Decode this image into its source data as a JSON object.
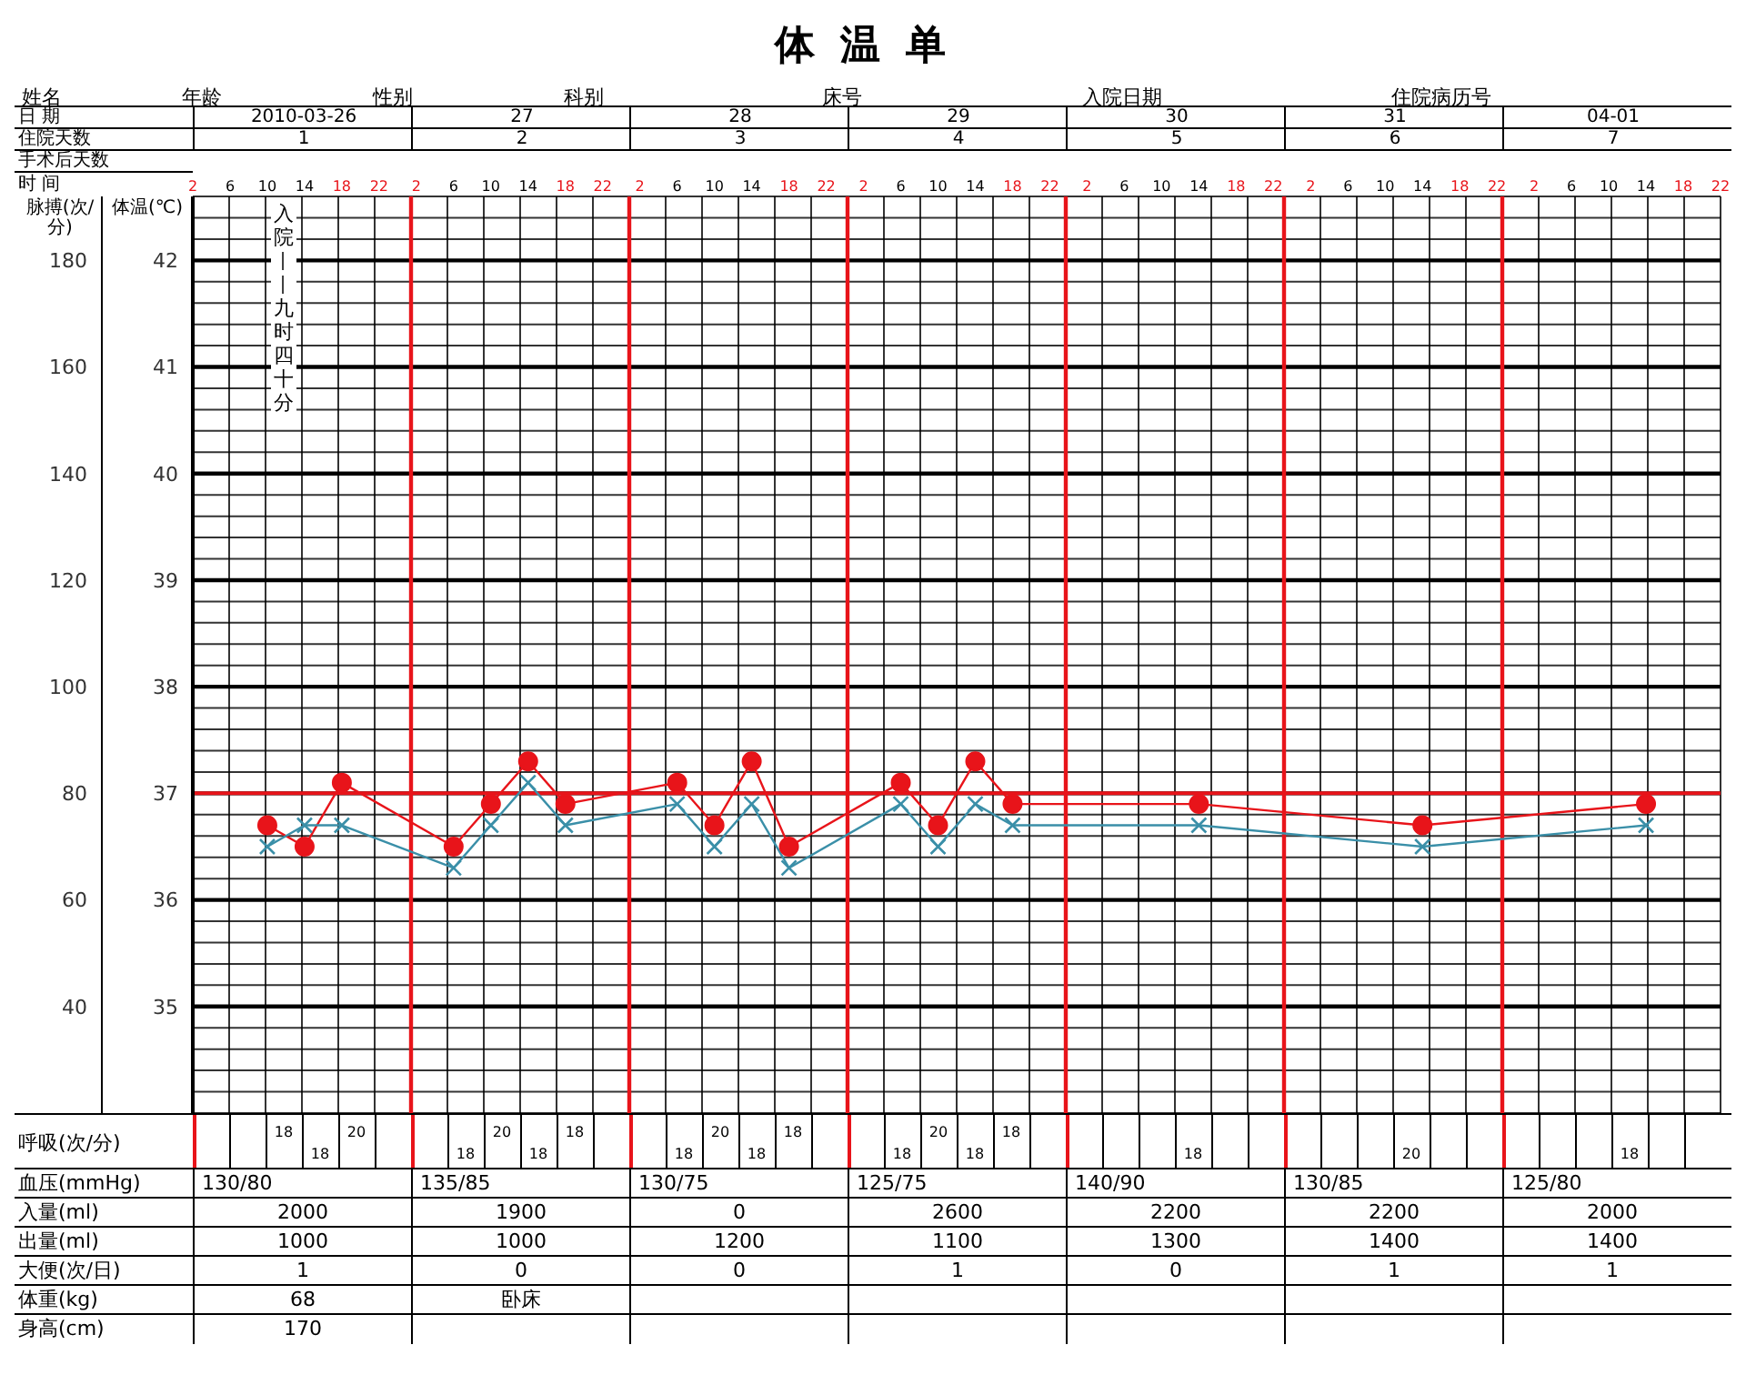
{
  "chart_data": [
    {
      "type": "line",
      "title": "体温单",
      "ylabel": "脉搏(次/分)",
      "y2label": "体温(℃)",
      "categories": [
        "2",
        "6",
        "10",
        "14",
        "18",
        "22",
        "2",
        "6",
        "10",
        "14",
        "18",
        "22",
        "2",
        "6",
        "10",
        "14",
        "18",
        "22",
        "2",
        "6",
        "10",
        "14",
        "18",
        "22",
        "2",
        "6",
        "10",
        "14",
        "18",
        "22",
        "2",
        "6",
        "10",
        "14",
        "18",
        "22",
        "2",
        "6",
        "10",
        "14",
        "18",
        "22"
      ],
      "ylim": [
        20,
        192
      ],
      "yticks": [
        40,
        60,
        80,
        100,
        120,
        140,
        160,
        180
      ],
      "y2lim": [
        34,
        42.6
      ],
      "y2ticks": [
        35,
        36,
        37,
        38,
        39,
        40,
        41,
        42
      ],
      "grid": true,
      "series": [
        {
          "color": "#e8141a",
          "marker": "circle",
          "values": [
            null,
            null,
            74,
            70,
            82,
            null,
            null,
            70,
            78,
            86,
            78,
            null,
            null,
            82,
            74,
            86,
            70,
            null,
            null,
            82,
            74,
            86,
            78,
            null,
            null,
            null,
            null,
            78,
            null,
            null,
            null,
            null,
            null,
            74,
            null,
            null,
            null,
            null,
            null,
            78,
            null,
            null
          ]
        },
        {
          "color": "#3a8fa8",
          "marker": "cross",
          "axis": "y2",
          "values": [
            null,
            null,
            36.5,
            36.7,
            36.7,
            null,
            null,
            36.3,
            36.7,
            37.1,
            36.7,
            null,
            null,
            36.9,
            36.5,
            36.9,
            36.3,
            null,
            null,
            36.9,
            36.5,
            36.9,
            36.7,
            null,
            null,
            null,
            null,
            36.7,
            null,
            null,
            null,
            null,
            null,
            36.5,
            null,
            null,
            null,
            null,
            null,
            36.7,
            null,
            null
          ]
        }
      ],
      "ref_lines": [
        {
          "axis": "y2",
          "value": 37,
          "color": "#e8141a"
        }
      ],
      "annotations": [
        "姓名",
        "年龄",
        "性别",
        "科别",
        "床号",
        "入院日期",
        "住院病历号",
        "日 期",
        "2010-03-26",
        "27",
        "28",
        "29",
        "30",
        "31",
        "04-01",
        "住院天数",
        "1",
        "2",
        "3",
        "4",
        "5",
        "6",
        "7",
        "手术后天数",
        "时 间",
        "入院——九时四十分"
      ]
    },
    {
      "type": "other",
      "data_labels": true,
      "categories": [
        null,
        null,
        null,
        null,
        null,
        null,
        null,
        null,
        null,
        null,
        null,
        null,
        null,
        null,
        null,
        null,
        null,
        null,
        null,
        null,
        null,
        null,
        null,
        null,
        null,
        null,
        null,
        null,
        null,
        null,
        null,
        null,
        null,
        null,
        null,
        null,
        null,
        null,
        null,
        null,
        null,
        null
      ],
      "series": [
        {
          "name": "呼吸(次/分)",
          "values": [
            null,
            null,
            18,
            18,
            20,
            null,
            null,
            18,
            20,
            18,
            18,
            null,
            null,
            18,
            20,
            18,
            18,
            null,
            null,
            18,
            20,
            18,
            18,
            null,
            null,
            null,
            null,
            18,
            null,
            null,
            null,
            null,
            null,
            20,
            null,
            null,
            null,
            null,
            null,
            18,
            null,
            null
          ]
        }
      ],
      "annotations": [
        "血压(mmHg)",
        "130/80",
        "135/85",
        "130/75",
        "125/75",
        "140/90",
        "130/85",
        "125/80",
        "入量(ml)",
        "2000",
        "1900",
        "0",
        "2600",
        "2200",
        "2200",
        "2000",
        "出量(ml)",
        "1000",
        "1000",
        "1200",
        "1100",
        "1300",
        "1400",
        "1400",
        "大便(次/日)",
        "1",
        "0",
        "0",
        "1",
        "0",
        "1",
        "1",
        "体重(kg)",
        "68",
        "卧床",
        "身高(cm)",
        "170"
      ]
    }
  ]
}
